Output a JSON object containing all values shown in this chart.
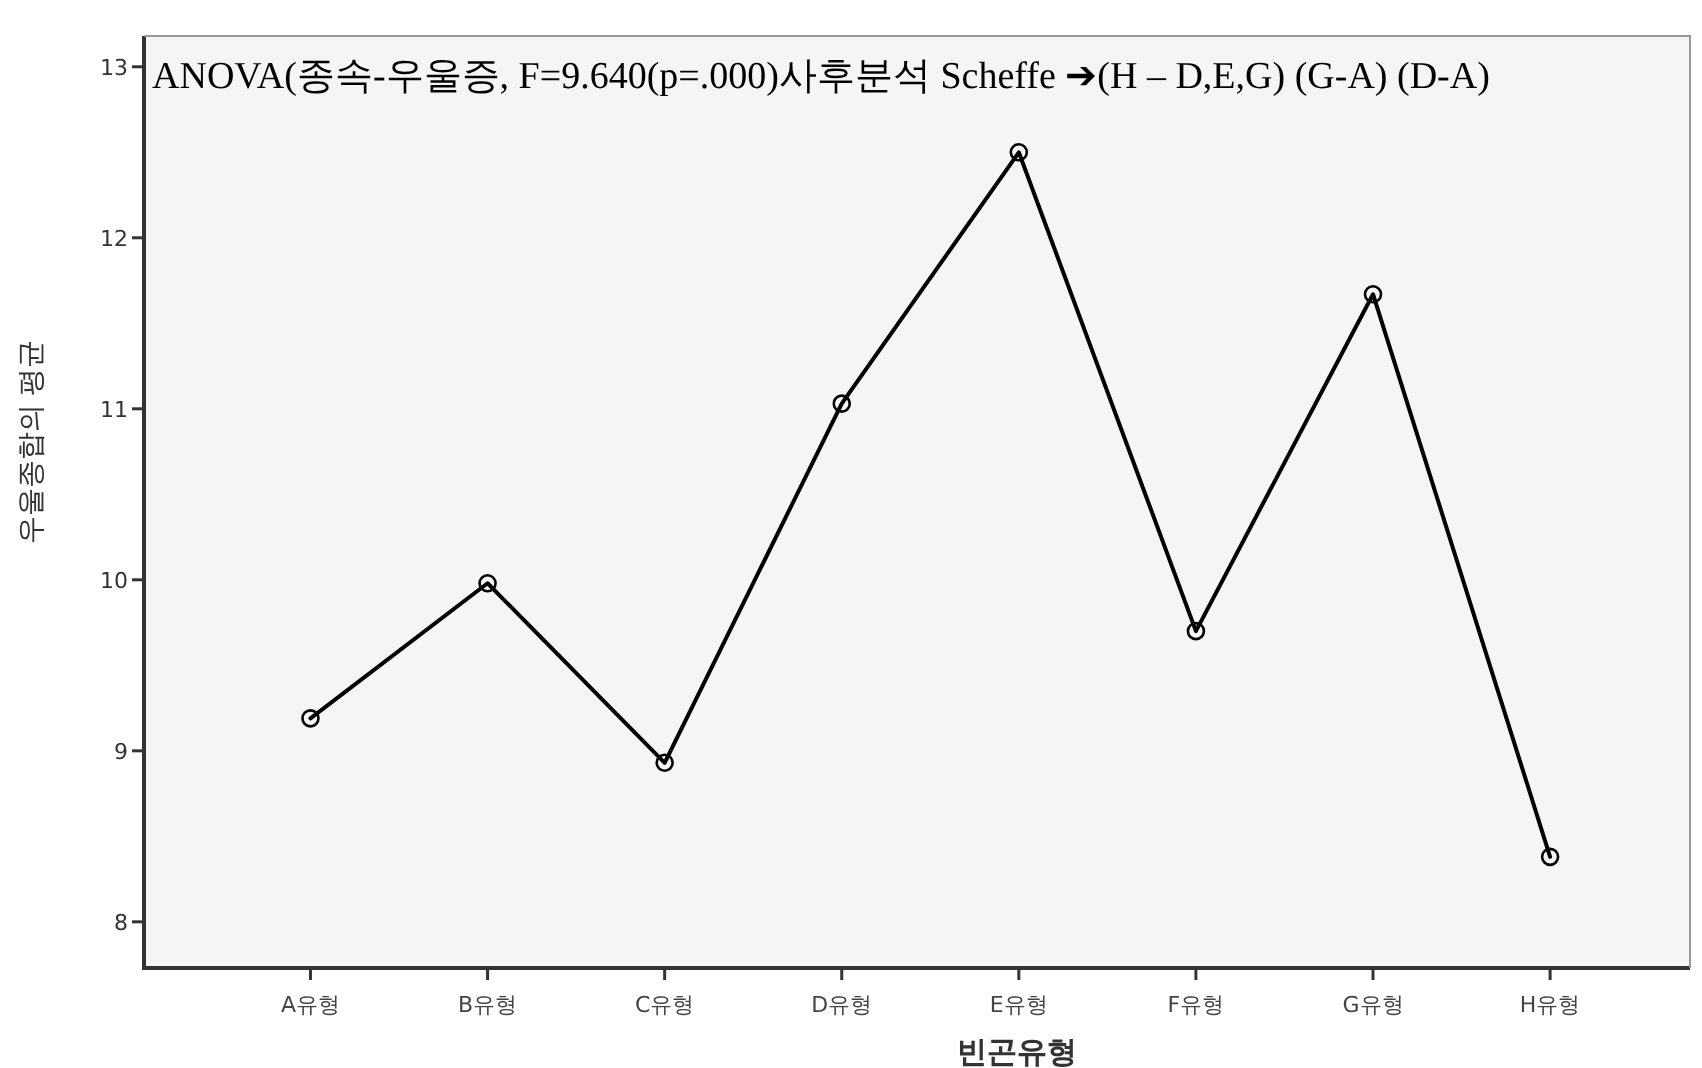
{
  "chart_data": {
    "type": "line",
    "title": "ANOVA(종속-우울증,  F=9.640(p=.000)사후분석 Scheffe ➔(H – D,E,G) (G-A) (D-A)",
    "xlabel": "빈곤유형",
    "ylabel": "우울종합의 평균",
    "categories": [
      "A유형",
      "B유형",
      "C유형",
      "D유형",
      "E유형",
      "F유형",
      "G유형",
      "H유형"
    ],
    "series": [
      {
        "color": "#000000",
        "values": [
          9.19,
          9.98,
          8.93,
          11.03,
          12.5,
          9.7,
          11.67,
          8.38
        ]
      }
    ],
    "ylim": [
      7.73,
      13.18
    ],
    "yticks": [
      8,
      9,
      10,
      11,
      12,
      13
    ],
    "marker": "circle",
    "line_style": "solid",
    "grid": false
  }
}
